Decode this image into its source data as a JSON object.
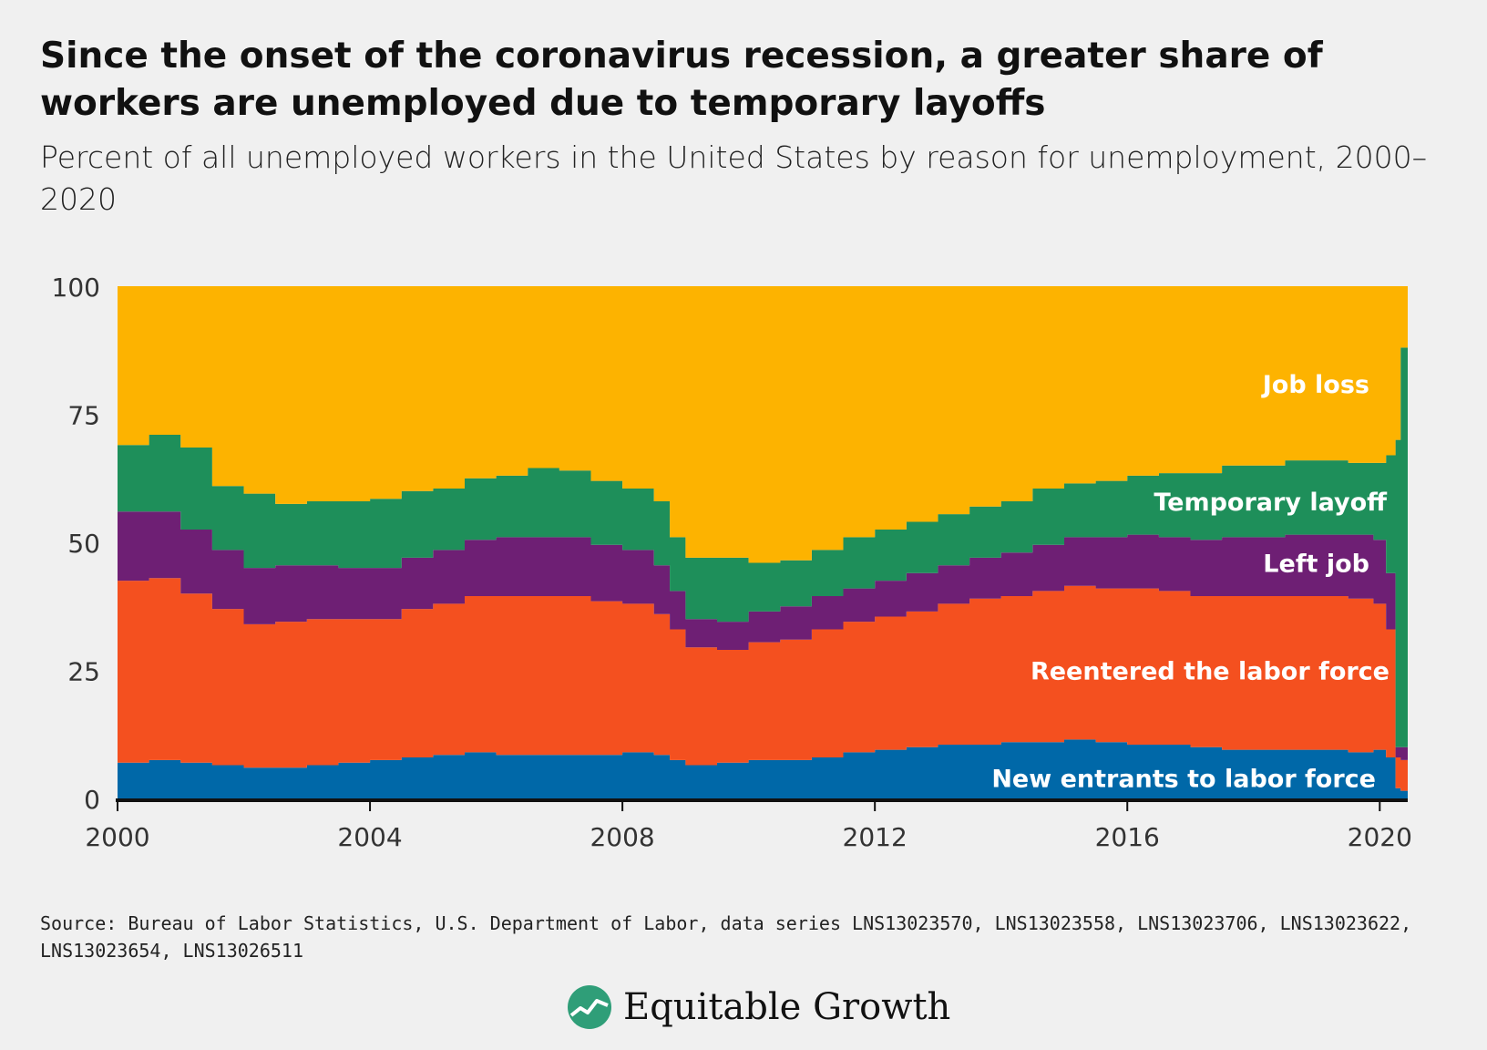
{
  "header": {
    "title": "Since the onset of the coronavirus recession, a greater share of workers are unemployed due to temporary layoffs",
    "subtitle": "Percent of all unemployed workers in the United States by reason for unemployment, 2000–2020"
  },
  "footer": {
    "source": "Source: Bureau of Labor Statistics, U.S. Department of Labor, data series LNS13023570, LNS13023558, LNS13023706, LNS13023622, LNS13023654, LNS13026511",
    "brand": "Equitable Growth"
  },
  "colors": {
    "background": "#f0f0f0",
    "new_entrants": "#0068a8",
    "reentered": "#f4501f",
    "left_job": "#6e1f74",
    "temporary_layoff": "#1e8f5a",
    "job_loss": "#fdb300",
    "axis_text": "#333333",
    "label_text": "#ffffff"
  },
  "chart_data": {
    "type": "area",
    "stacked": true,
    "title": "",
    "xlabel": "",
    "ylabel": "",
    "ylim": [
      0,
      100
    ],
    "yticks": [
      "0",
      "25",
      "50",
      "75",
      "100"
    ],
    "xticks": [
      "2000",
      "2004",
      "2008",
      "2012",
      "2016",
      "2020"
    ],
    "x": [
      2000.0,
      2000.5,
      2001.0,
      2001.5,
      2002.0,
      2002.5,
      2003.0,
      2003.5,
      2004.0,
      2004.5,
      2005.0,
      2005.5,
      2006.0,
      2006.5,
      2007.0,
      2007.5,
      2008.0,
      2008.5,
      2008.75,
      2009.0,
      2009.5,
      2010.0,
      2010.5,
      2011.0,
      2011.5,
      2012.0,
      2012.5,
      2013.0,
      2013.5,
      2014.0,
      2014.5,
      2015.0,
      2015.5,
      2016.0,
      2016.5,
      2017.0,
      2017.5,
      2018.0,
      2018.5,
      2019.0,
      2019.5,
      2019.9,
      2020.1,
      2020.25,
      2020.33
    ],
    "series": [
      {
        "name": "New entrants to labor force",
        "values": [
          7,
          7.5,
          7,
          6.5,
          6,
          6,
          6.5,
          7,
          7.5,
          8,
          8.5,
          9,
          8.5,
          8.5,
          8.5,
          8.5,
          9,
          8.5,
          7.5,
          6.5,
          7,
          7.5,
          7.5,
          8,
          9,
          9.5,
          10,
          10.5,
          10.5,
          11,
          11,
          11.5,
          11,
          10.5,
          10.5,
          10,
          9.5,
          9.5,
          9.5,
          9.5,
          9,
          9.5,
          8,
          2,
          1.5
        ]
      },
      {
        "name": "Reentered the labor force",
        "values": [
          35.5,
          35.5,
          33,
          30.5,
          28,
          28.5,
          28.5,
          28,
          27.5,
          29,
          29.5,
          30.5,
          31,
          31,
          31,
          30,
          29,
          27.5,
          25.5,
          23,
          22,
          23,
          23.5,
          25,
          25.5,
          26,
          26.5,
          27.5,
          28.5,
          28.5,
          29.5,
          30,
          30,
          30.5,
          30,
          29.5,
          30,
          30,
          30,
          30,
          30,
          28.5,
          25,
          6,
          6
        ]
      },
      {
        "name": "Left job",
        "values": [
          13.5,
          13,
          12.5,
          11.5,
          11,
          11,
          10.5,
          10,
          10,
          10,
          10.5,
          11,
          11.5,
          11.5,
          11.5,
          11,
          10.5,
          9.5,
          7.5,
          5.5,
          5.5,
          6,
          6.5,
          6.5,
          6.5,
          7,
          7.5,
          7.5,
          8,
          8.5,
          9,
          9.5,
          10,
          10.5,
          10.5,
          11,
          11.5,
          11.5,
          12,
          12,
          12.5,
          12.5,
          11,
          2,
          2.5
        ]
      },
      {
        "name": "Temporary layoff",
        "values": [
          13,
          15,
          16,
          12.5,
          14.5,
          12,
          12.5,
          13,
          13.5,
          13,
          12,
          12,
          12,
          13.5,
          13,
          12.5,
          12,
          12.5,
          10.5,
          12,
          12.5,
          9.5,
          9,
          9,
          10,
          10,
          10,
          10,
          10,
          10,
          11,
          10.5,
          11,
          11.5,
          12.5,
          13,
          14,
          14,
          14.5,
          14.5,
          14,
          15,
          23,
          60,
          78
        ]
      },
      {
        "name": "Job loss",
        "values": [
          31,
          29,
          31.5,
          39,
          40.5,
          42.5,
          42,
          42,
          41.5,
          40,
          39.5,
          37.5,
          37,
          35.5,
          36,
          38,
          39.5,
          42,
          49,
          53,
          53,
          54,
          53.5,
          51.5,
          49,
          47.5,
          46,
          44.5,
          43,
          42,
          39.5,
          38.5,
          38,
          37,
          36.5,
          36.5,
          35,
          35,
          34,
          34,
          34.5,
          34.5,
          33,
          30,
          12
        ]
      }
    ],
    "series_labels": [
      "New entrants to labor force",
      "Reentered the labor force",
      "Left job",
      "Temporary layoff",
      "Job loss"
    ],
    "series_label_values": [
      4,
      25,
      46,
      58,
      81
    ],
    "grid": false,
    "legend": "inline labels on right"
  }
}
